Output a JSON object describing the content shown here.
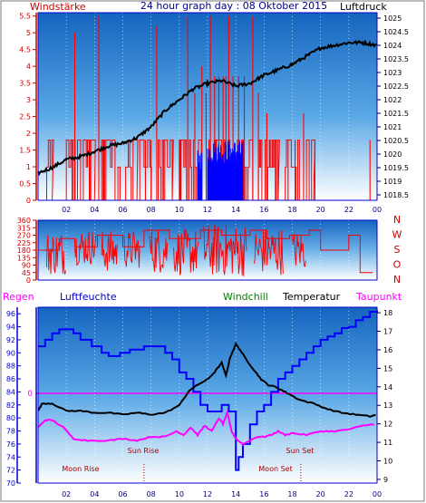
{
  "header": {
    "left_label": "Windstärke",
    "title": "24 hour graph day : 08 Oktober 2015",
    "right_label": "Luftdruck"
  },
  "wind_dir_labels": [
    "N",
    "W",
    "S",
    "O",
    "N"
  ],
  "bottom_header": {
    "regen": "Regen",
    "luftfeuchte": "Luftfeuchte",
    "windchill": "Windchill",
    "temperatur": "Temperatur",
    "taupunkt": "Taupunkt"
  },
  "annotations": {
    "sun_rise": "Sun Rise",
    "sun_set": "Sun Set",
    "moon_rise": "Moon Rise",
    "moon_set": "Moon Set"
  },
  "colors": {
    "frame": "#0000cc",
    "wind": "#ff0000",
    "gust": "#0000ff",
    "pressure": "#000000",
    "humidity": "#0000ff",
    "temperature": "#000000",
    "dewpoint": "#ff00ff",
    "rain": "#ff00ff",
    "title": "#00008b",
    "left_label": "#cc0000",
    "windchill_label": "#008000"
  },
  "chart_data": [
    {
      "type": "bar",
      "name_key": "wind_pressure",
      "x_ticks": [
        "02",
        "04",
        "06",
        "08",
        "10",
        "12",
        "14",
        "16",
        "18",
        "20",
        "22",
        "00"
      ],
      "y_left_ticks": [
        "0",
        "0.5",
        "1",
        "1.5",
        "2",
        "2.5",
        "3",
        "3.5",
        "4",
        "4.5",
        "5",
        "5.5"
      ],
      "y_right_ticks": [
        "1018.5",
        "1019",
        "1019.5",
        "1020",
        "1020.5",
        "1021",
        "1021.5",
        "1022",
        "1022.5",
        "1023",
        "1023.5",
        "1024",
        "1024.5",
        "1025"
      ],
      "ylim_left": [
        0,
        5.6
      ],
      "ylim_right": [
        1018.3,
        1025.2
      ],
      "wind_segments": [
        [
          0.5,
          1.0,
          1.8
        ],
        [
          2.0,
          3.0,
          1.8
        ],
        [
          3.2,
          4.0,
          1.8
        ],
        [
          4.5,
          5.8,
          1.8
        ],
        [
          6.2,
          7.0,
          1.8
        ],
        [
          7.2,
          8.0,
          1.8
        ],
        [
          8.5,
          9.5,
          1.8
        ],
        [
          10.0,
          11.5,
          1.8
        ],
        [
          12.0,
          13.5,
          1.8
        ],
        [
          14.0,
          15.2,
          1.8
        ],
        [
          15.6,
          17.0,
          1.8
        ],
        [
          17.5,
          18.5,
          1.8
        ],
        [
          19.0,
          19.5,
          1.8
        ]
      ],
      "gust_segments": [
        [
          11.3,
          11.6,
          1.5
        ],
        [
          12.0,
          14.5,
          1.8
        ]
      ],
      "wind_spikes": [
        [
          2.6,
          5.0
        ],
        [
          3.7,
          1.8
        ],
        [
          4.3,
          5.5
        ],
        [
          7.6,
          1.8
        ],
        [
          8.0,
          1.8
        ],
        [
          8.4,
          5.2
        ],
        [
          9.5,
          1.8
        ],
        [
          10.6,
          5.5
        ],
        [
          11.1,
          3.2
        ],
        [
          11.6,
          4.0
        ],
        [
          11.9,
          3.2
        ],
        [
          12.2,
          5.5
        ],
        [
          12.5,
          3.7
        ],
        [
          12.8,
          3.7
        ],
        [
          13.1,
          3.7
        ],
        [
          13.3,
          3.7
        ],
        [
          13.5,
          5.5
        ],
        [
          13.8,
          3.7
        ],
        [
          14.2,
          3.7
        ],
        [
          14.6,
          3.7
        ],
        [
          15.2,
          5.5
        ],
        [
          15.6,
          3.2
        ],
        [
          16.2,
          2.6
        ],
        [
          16.8,
          1.8
        ],
        [
          17.7,
          1.8
        ],
        [
          18.2,
          1.8
        ],
        [
          18.8,
          2.6
        ],
        [
          19.6,
          1.8
        ],
        [
          23.5,
          1.8
        ]
      ],
      "pressure_points": [
        [
          0,
          1019.3
        ],
        [
          1,
          1019.5
        ],
        [
          2,
          1019.8
        ],
        [
          3,
          1019.9
        ],
        [
          4,
          1020.1
        ],
        [
          5,
          1020.3
        ],
        [
          6,
          1020.4
        ],
        [
          7,
          1020.6
        ],
        [
          8,
          1021.0
        ],
        [
          9,
          1021.6
        ],
        [
          10,
          1022.0
        ],
        [
          11,
          1022.4
        ],
        [
          12,
          1022.6
        ],
        [
          13,
          1022.7
        ],
        [
          14,
          1022.5
        ],
        [
          15,
          1022.6
        ],
        [
          16,
          1022.9
        ],
        [
          17,
          1023.1
        ],
        [
          18,
          1023.3
        ],
        [
          19,
          1023.6
        ],
        [
          20,
          1023.9
        ],
        [
          21,
          1024.0
        ],
        [
          22,
          1024.1
        ],
        [
          23,
          1024.1
        ],
        [
          24,
          1024.0
        ]
      ]
    },
    {
      "type": "line",
      "name_key": "wind_direction",
      "y_ticks": [
        "0",
        "45",
        "90",
        "135",
        "180",
        "225",
        "270",
        "315",
        "360"
      ],
      "ylim": [
        0,
        360
      ],
      "hold_series": [
        [
          0,
          180
        ],
        [
          1.5,
          250
        ],
        [
          2.6,
          200
        ],
        [
          4.2,
          270
        ],
        [
          6.0,
          200
        ],
        [
          7.5,
          300
        ],
        [
          9.3,
          250
        ],
        [
          11.5,
          300
        ],
        [
          13.0,
          270
        ],
        [
          15.0,
          300
        ],
        [
          16.2,
          250
        ],
        [
          17.8,
          270
        ],
        [
          19.2,
          300
        ],
        [
          20.0,
          180
        ],
        [
          22.0,
          270
        ],
        [
          22.8,
          45
        ],
        [
          23.7,
          0
        ]
      ],
      "noisy_ranges": [
        [
          0.6,
          2.0,
          30,
          300
        ],
        [
          2.6,
          4.1,
          90,
          310
        ],
        [
          4.5,
          5.6,
          45,
          300
        ],
        [
          6.1,
          7.2,
          70,
          300
        ],
        [
          7.9,
          9.2,
          40,
          320
        ],
        [
          9.6,
          11.4,
          30,
          310
        ],
        [
          11.7,
          14.8,
          20,
          340
        ],
        [
          15.3,
          17.4,
          30,
          320
        ],
        [
          18.0,
          19.0,
          60,
          300
        ]
      ]
    },
    {
      "type": "line",
      "name_key": "temp_humidity",
      "y_left_ticks": [
        "70",
        "72",
        "74",
        "76",
        "78",
        "80",
        "82",
        "84",
        "86",
        "88",
        "90",
        "92",
        "94",
        "96"
      ],
      "ylim_left": [
        70,
        97
      ],
      "y_right_ticks": [
        "9",
        "10",
        "11",
        "12",
        "13",
        "14",
        "15",
        "16",
        "17",
        "18"
      ],
      "ylim_right": [
        8.8,
        18.3
      ],
      "rain_label": "0",
      "series": [
        {
          "name_key": "luftfeuchte",
          "axis": "left",
          "step": true,
          "points": [
            [
              0,
              91
            ],
            [
              0.5,
              92
            ],
            [
              1.0,
              93
            ],
            [
              1.5,
              93.6
            ],
            [
              2.5,
              93
            ],
            [
              3.0,
              92
            ],
            [
              3.8,
              91
            ],
            [
              4.5,
              90
            ],
            [
              5.0,
              89.5
            ],
            [
              5.8,
              90
            ],
            [
              6.5,
              90.5
            ],
            [
              7.5,
              91
            ],
            [
              8.0,
              91
            ],
            [
              9.0,
              90
            ],
            [
              9.5,
              89
            ],
            [
              10.0,
              87
            ],
            [
              10.5,
              86
            ],
            [
              11.0,
              84
            ],
            [
              11.5,
              82
            ],
            [
              12.0,
              81
            ],
            [
              12.5,
              81
            ],
            [
              13.0,
              82
            ],
            [
              13.5,
              81
            ],
            [
              14.0,
              72
            ],
            [
              14.2,
              74
            ],
            [
              14.5,
              76
            ],
            [
              15.0,
              79
            ],
            [
              15.5,
              81
            ],
            [
              16.0,
              82
            ],
            [
              16.5,
              84
            ],
            [
              17.0,
              86
            ],
            [
              17.5,
              87
            ],
            [
              18.0,
              88
            ],
            [
              18.5,
              89
            ],
            [
              19.0,
              90
            ],
            [
              19.5,
              91
            ],
            [
              20.0,
              92
            ],
            [
              20.5,
              92.5
            ],
            [
              21.0,
              93
            ],
            [
              21.5,
              93.8
            ],
            [
              22.0,
              94
            ],
            [
              22.5,
              95
            ],
            [
              23.0,
              95.5
            ],
            [
              23.5,
              96.3
            ],
            [
              24.0,
              96.5
            ]
          ]
        },
        {
          "name_key": "temperatur",
          "axis": "right",
          "step": false,
          "points": [
            [
              0,
              12.7
            ],
            [
              0.3,
              13.1
            ],
            [
              1.0,
              13.1
            ],
            [
              2.0,
              12.7
            ],
            [
              3.0,
              12.7
            ],
            [
              4.0,
              12.6
            ],
            [
              5.0,
              12.6
            ],
            [
              6.0,
              12.5
            ],
            [
              7.0,
              12.6
            ],
            [
              8.0,
              12.5
            ],
            [
              9.0,
              12.6
            ],
            [
              10.0,
              13.0
            ],
            [
              10.7,
              13.8
            ],
            [
              11.5,
              14.2
            ],
            [
              12.0,
              14.4
            ],
            [
              12.5,
              14.8
            ],
            [
              13.0,
              15.3
            ],
            [
              13.3,
              14.6
            ],
            [
              13.6,
              15.6
            ],
            [
              14.0,
              16.3
            ],
            [
              14.3,
              16.0
            ],
            [
              14.8,
              15.4
            ],
            [
              15.3,
              14.9
            ],
            [
              15.8,
              14.4
            ],
            [
              16.3,
              14.1
            ],
            [
              16.8,
              14.0
            ],
            [
              17.3,
              13.8
            ],
            [
              17.8,
              13.6
            ],
            [
              18.5,
              13.3
            ],
            [
              19.5,
              13.1
            ],
            [
              20.5,
              12.8
            ],
            [
              21.5,
              12.6
            ],
            [
              22.5,
              12.5
            ],
            [
              23.5,
              12.4
            ],
            [
              24.0,
              12.5
            ]
          ]
        },
        {
          "name_key": "taupunkt",
          "axis": "right",
          "step": false,
          "points": [
            [
              0,
              11.8
            ],
            [
              0.5,
              12.2
            ],
            [
              1.0,
              12.2
            ],
            [
              1.8,
              11.8
            ],
            [
              2.5,
              11.2
            ],
            [
              3.5,
              11.1
            ],
            [
              5.0,
              11.1
            ],
            [
              6.0,
              11.2
            ],
            [
              7.0,
              11.1
            ],
            [
              8.0,
              11.3
            ],
            [
              9.0,
              11.3
            ],
            [
              9.8,
              11.6
            ],
            [
              10.3,
              11.4
            ],
            [
              10.8,
              11.8
            ],
            [
              11.3,
              11.4
            ],
            [
              11.8,
              11.9
            ],
            [
              12.3,
              11.6
            ],
            [
              12.8,
              12.3
            ],
            [
              13.1,
              12.0
            ],
            [
              13.4,
              12.6
            ],
            [
              13.7,
              11.6
            ],
            [
              14.0,
              11.2
            ],
            [
              14.5,
              10.9
            ],
            [
              15.0,
              11.1
            ],
            [
              15.5,
              11.3
            ],
            [
              16.0,
              11.3
            ],
            [
              16.5,
              11.4
            ],
            [
              17.0,
              11.6
            ],
            [
              17.5,
              11.4
            ],
            [
              18.0,
              11.5
            ],
            [
              19.0,
              11.4
            ],
            [
              20.0,
              11.6
            ],
            [
              21.0,
              11.6
            ],
            [
              22.0,
              11.7
            ],
            [
              23.0,
              11.9
            ],
            [
              24.0,
              12.0
            ]
          ]
        }
      ],
      "sunrise_hour": 7.5,
      "sunset_hour": 18.6
    }
  ]
}
